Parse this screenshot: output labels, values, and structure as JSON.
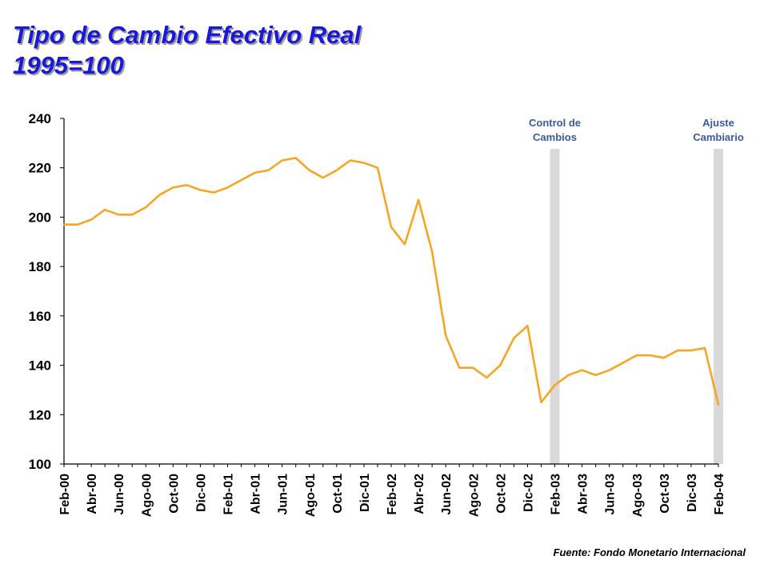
{
  "title": {
    "line1": "Tipo de Cambio Efectivo Real",
    "line2": "1995=100"
  },
  "source": "Fuente: Fondo Monetario Internacional",
  "colors": {
    "title": "#1a1ad6",
    "line": "#f5a623",
    "event_band": "#d9d9d9",
    "event_text": "#3a5a9a"
  },
  "chart_data": {
    "type": "line",
    "title": "Tipo de Cambio Efectivo Real",
    "subtitle": "1995=100",
    "xlabel": "",
    "ylabel": "",
    "ylim": [
      100,
      240
    ],
    "yticks": [
      100,
      120,
      140,
      160,
      180,
      200,
      220,
      240
    ],
    "grid": false,
    "x": [
      "Feb-00",
      "Mar-00",
      "Abr-00",
      "May-00",
      "Jun-00",
      "Jul-00",
      "Ago-00",
      "Sep-00",
      "Oct-00",
      "Nov-00",
      "Dic-00",
      "Ene-01",
      "Feb-01",
      "Mar-01",
      "Abr-01",
      "May-01",
      "Jun-01",
      "Jul-01",
      "Ago-01",
      "Sep-01",
      "Oct-01",
      "Nov-01",
      "Dic-01",
      "Ene-02",
      "Feb-02",
      "Mar-02",
      "Abr-02",
      "May-02",
      "Jun-02",
      "Jul-02",
      "Ago-02",
      "Sep-02",
      "Oct-02",
      "Nov-02",
      "Dic-02",
      "Ene-03",
      "Feb-03",
      "Mar-03",
      "Abr-03",
      "May-03",
      "Jun-03",
      "Jul-03",
      "Ago-03",
      "Sep-03",
      "Oct-03",
      "Nov-03",
      "Dic-03",
      "Ene-04",
      "Feb-04"
    ],
    "xticklabels": [
      "Feb-00",
      "Abr-00",
      "Jun-00",
      "Ago-00",
      "Oct-00",
      "Dic-00",
      "Feb-01",
      "Abr-01",
      "Jun-01",
      "Ago-01",
      "Oct-01",
      "Dic-01",
      "Feb-02",
      "Abr-02",
      "Jun-02",
      "Ago-02",
      "Oct-02",
      "Dic-02",
      "Feb-03",
      "Abr-03",
      "Jun-03",
      "Ago-03",
      "Oct-03",
      "Dic-03",
      "Feb-04"
    ],
    "series": [
      {
        "values": [
          197,
          197,
          199,
          203,
          201,
          201,
          204,
          209,
          212,
          213,
          211,
          210,
          212,
          215,
          218,
          219,
          223,
          224,
          219,
          216,
          219,
          223,
          222,
          220,
          196,
          189,
          207,
          186,
          152,
          139,
          139,
          135,
          140,
          151,
          156,
          125,
          132,
          136,
          138,
          136,
          138,
          141,
          144,
          144,
          143,
          146,
          146,
          147,
          124
        ]
      }
    ],
    "annotations": [
      {
        "label_line1": "Control de",
        "label_line2": "Cambios",
        "x": "Feb-03"
      },
      {
        "label_line1": "Ajuste",
        "label_line2": "Cambiario",
        "x": "Feb-04"
      }
    ]
  }
}
